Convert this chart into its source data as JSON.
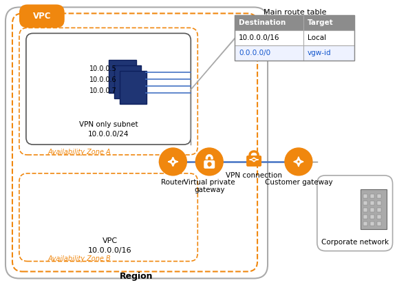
{
  "title": "Main route table",
  "region_label": "Region",
  "vpc_label": "VPC",
  "vpc_cidr": "10.0.0.0/16",
  "subnet_label": "VPN only subnet\n10.0.0.0/24",
  "az_a_label": "Availability Zone A",
  "az_b_label": "Availability Zone B",
  "instance_ips": [
    "10.0.0.5",
    "10.0.0.6",
    "10.0.0.7"
  ],
  "router_label": "Router",
  "vpgw_label": "Virtual private\ngateway",
  "vpn_conn_label": "VPN connection",
  "cust_gw_label": "Customer gateway",
  "corp_net_label": "Corporate network",
  "table_headers": [
    "Destination",
    "Target"
  ],
  "table_row1": [
    "10.0.0.0/16",
    "Local"
  ],
  "table_row2": [
    "0.0.0.0/0",
    "vgw-id"
  ],
  "orange": "#F0870E",
  "blue_dark": "#1F3574",
  "blue_link": "#1155CC",
  "gray_border": "#999999",
  "white": "#FFFFFF",
  "black": "#000000",
  "bg_white": "#FFFFFF",
  "table_header_bg": "#8C8C8C",
  "table_row2_bg": "#EEF2FF",
  "line_blue": "#4472C4",
  "line_gray": "#888888",
  "building_gray": "#8C8C8C",
  "dashed_color": "#F0870E"
}
